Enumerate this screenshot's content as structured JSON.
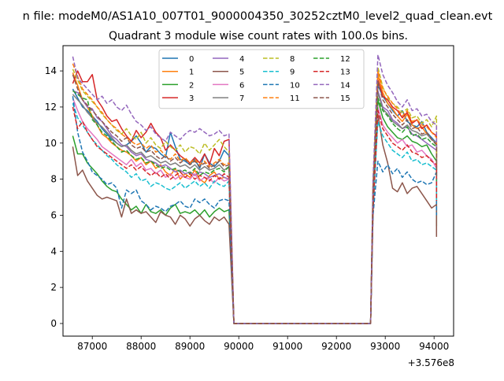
{
  "header": {
    "supertitle": "n file: modeM0/AS1A10_007T01_9000004350_30252cztM0_level2_quad_clean.evt",
    "title": "Quadrant 3 module wise count rates with 100.0s bins."
  },
  "chart_data": {
    "type": "line",
    "title": "Quadrant 3 module wise count rates with 100.0s bins.",
    "xlabel": "",
    "ylabel": "",
    "x_offset_label": "+3.576e8",
    "xlim": [
      86400,
      94400
    ],
    "ylim": [
      -0.7,
      15.4
    ],
    "xticks": [
      87000,
      88000,
      89000,
      90000,
      91000,
      92000,
      93000,
      94000
    ],
    "yticks": [
      0,
      2,
      4,
      6,
      8,
      10,
      12,
      14
    ],
    "grid": false,
    "legend_position": "top-center",
    "gap": {
      "start": 89850,
      "end": 92750,
      "value": 0
    },
    "x_start": 86600,
    "step": 100,
    "segment1_end": 89850,
    "segment2_start": 92750,
    "x_end": 94050,
    "series": [
      {
        "name": "0",
        "color": "#1f77b4",
        "dash": false,
        "seg1": [
          13.0,
          12.5,
          12.0,
          11.8,
          11.5,
          11.2,
          10.8,
          10.5,
          10.2,
          10.0,
          9.8,
          9.9,
          10.1,
          10.4,
          10.0,
          9.5,
          9.8,
          9.7,
          9.4,
          9.2,
          10.6,
          9.8,
          9.1,
          9.0,
          8.8,
          9.1,
          8.6,
          9.4,
          8.9,
          8.7,
          9.0,
          9.6,
          9.3
        ],
        "seg2": [
          7.0,
          13.2,
          12.6,
          12.2,
          11.8,
          11.5,
          11.8,
          11.2,
          11.0,
          10.9,
          11.2,
          10.6,
          10.3,
          10.0,
          9.0
        ]
      },
      {
        "name": "1",
        "color": "#ff7f0e",
        "dash": false,
        "seg1": [
          13.9,
          13.2,
          12.4,
          12.0,
          11.5,
          11.0,
          10.5,
          10.3,
          10.0,
          9.8,
          9.6,
          9.5,
          9.3,
          9.0,
          9.2,
          8.8,
          9.0,
          8.6,
          8.8,
          8.4,
          8.2,
          8.6,
          8.0,
          8.3,
          8.1,
          8.5,
          8.0,
          7.8,
          8.2,
          8.4,
          8.0,
          8.1,
          8.0
        ],
        "seg2": [
          6.8,
          13.8,
          12.8,
          12.2,
          11.9,
          11.5,
          11.2,
          11.6,
          11.0,
          10.8,
          10.9,
          10.5,
          10.2,
          10.0,
          8.6
        ]
      },
      {
        "name": "2",
        "color": "#2ca02c",
        "dash": false,
        "seg1": [
          10.4,
          9.4,
          9.4,
          8.9,
          8.6,
          8.3,
          7.9,
          7.6,
          7.4,
          7.3,
          6.9,
          6.6,
          6.3,
          6.5,
          6.1,
          6.6,
          6.2,
          6.1,
          6.3,
          6.0,
          6.4,
          6.6,
          6.1,
          6.2,
          6.1,
          6.3,
          6.0,
          6.3,
          5.9,
          6.2,
          6.4,
          6.2,
          6.3
        ],
        "seg2": [
          6.6,
          12.4,
          11.4,
          10.9,
          10.6,
          10.3,
          10.2,
          10.4,
          10.1,
          10.0,
          9.8,
          9.9,
          9.4,
          9.0,
          5.4
        ]
      },
      {
        "name": "3",
        "color": "#d62728",
        "dash": false,
        "seg1": [
          13.3,
          14.0,
          13.4,
          13.4,
          13.8,
          12.4,
          12.0,
          11.5,
          11.2,
          11.3,
          10.8,
          10.4,
          10.1,
          10.7,
          10.3,
          10.6,
          11.1,
          10.6,
          10.3,
          9.6,
          9.9,
          9.6,
          9.3,
          9.1,
          8.9,
          9.2,
          8.9,
          9.4,
          8.8,
          9.7,
          9.3,
          10.1,
          10.2
        ],
        "seg2": [
          7.5,
          13.5,
          12.6,
          12.4,
          12.0,
          11.8,
          11.4,
          11.7,
          11.1,
          11.3,
          10.8,
          11.0,
          10.6,
          10.4,
          8.2
        ]
      },
      {
        "name": "4",
        "color": "#9467bd",
        "dash": false,
        "seg1": [
          12.9,
          12.8,
          12.4,
          12.0,
          11.9,
          11.4,
          11.2,
          10.8,
          10.4,
          10.2,
          9.9,
          9.8,
          9.5,
          9.3,
          9.4,
          9.1,
          9.0,
          8.9,
          8.7,
          8.8,
          8.6,
          8.4,
          8.5,
          8.3,
          8.4,
          8.2,
          8.4,
          8.3,
          8.1,
          8.2,
          8.3,
          8.1,
          8.0
        ],
        "seg2": [
          7.2,
          12.9,
          12.0,
          11.8,
          11.3,
          11.1,
          10.8,
          10.9,
          10.5,
          10.4,
          10.2,
          10.0,
          9.8,
          9.6,
          8.2
        ]
      },
      {
        "name": "5",
        "color": "#8c564b",
        "dash": false,
        "seg1": [
          9.8,
          8.2,
          8.5,
          7.9,
          7.5,
          7.1,
          6.9,
          7.0,
          6.9,
          6.8,
          5.9,
          6.9,
          6.1,
          6.3,
          6.1,
          6.2,
          5.9,
          5.6,
          6.2,
          6.0,
          5.9,
          5.5,
          6.0,
          5.8,
          5.4,
          5.8,
          6.0,
          5.7,
          5.5,
          5.9,
          5.7,
          5.9,
          5.5
        ],
        "seg2": [
          6.2,
          11.6,
          9.9,
          8.9,
          7.5,
          7.3,
          7.8,
          7.2,
          7.5,
          7.6,
          7.2,
          6.8,
          6.4,
          6.6,
          4.8
        ]
      },
      {
        "name": "6",
        "color": "#e377c2",
        "dash": false,
        "seg1": [
          12.5,
          11.8,
          11.2,
          10.8,
          10.5,
          10.2,
          9.8,
          9.6,
          9.4,
          9.2,
          9.0,
          8.8,
          9.1,
          8.7,
          8.9,
          8.5,
          8.6,
          8.3,
          8.5,
          8.1,
          8.3,
          8.0,
          8.2,
          8.1,
          8.0,
          8.3,
          7.9,
          8.1,
          8.0,
          7.8,
          8.1,
          7.9,
          8.0
        ],
        "seg2": [
          6.9,
          12.0,
          11.0,
          10.6,
          10.3,
          10.0,
          10.2,
          9.8,
          9.9,
          9.5,
          9.6,
          9.3,
          9.1,
          8.6,
          7.5
        ]
      },
      {
        "name": "7",
        "color": "#7f7f7f",
        "dash": false,
        "seg1": [
          12.7,
          12.4,
          12.1,
          11.7,
          11.4,
          11.1,
          10.9,
          10.6,
          10.3,
          10.0,
          9.8,
          9.9,
          9.6,
          9.4,
          9.5,
          9.2,
          9.3,
          9.1,
          8.9,
          9.0,
          8.8,
          8.9,
          8.7,
          8.8,
          8.6,
          8.8,
          8.5,
          8.7,
          8.5,
          8.6,
          8.8,
          8.5,
          8.7
        ],
        "seg2": [
          7.4,
          12.8,
          11.9,
          11.6,
          11.2,
          11.0,
          10.8,
          11.0,
          10.7,
          10.6,
          10.4,
          10.5,
          10.2,
          10.0,
          8.4
        ]
      },
      {
        "name": "8",
        "color": "#bcbd22",
        "dash": true,
        "seg1": [
          14.1,
          13.5,
          12.9,
          12.6,
          12.3,
          12.0,
          11.6,
          11.3,
          11.0,
          10.7,
          10.5,
          10.8,
          10.4,
          10.2,
          10.6,
          10.0,
          10.3,
          9.9,
          9.7,
          10.1,
          9.8,
          9.6,
          9.9,
          9.5,
          9.8,
          9.7,
          9.4,
          10.0,
          9.6,
          9.9,
          10.2,
          9.8,
          9.5
        ],
        "seg2": [
          7.8,
          14.2,
          13.1,
          12.5,
          12.2,
          12.0,
          11.7,
          11.9,
          11.4,
          11.5,
          11.1,
          11.3,
          10.9,
          11.5,
          9.4
        ]
      },
      {
        "name": "9",
        "color": "#17becf",
        "dash": true,
        "seg1": [
          12.2,
          11.4,
          11.0,
          10.6,
          10.2,
          9.9,
          9.6,
          9.3,
          9.1,
          8.8,
          8.6,
          8.4,
          8.1,
          8.3,
          7.9,
          8.0,
          7.6,
          7.8,
          7.7,
          7.5,
          7.4,
          7.6,
          7.8,
          7.5,
          7.7,
          7.9,
          7.6,
          7.8,
          7.5,
          7.9,
          7.7,
          7.6,
          7.9
        ],
        "seg2": [
          6.5,
          11.2,
          10.4,
          10.0,
          9.6,
          9.4,
          9.2,
          9.5,
          9.0,
          9.1,
          8.8,
          8.9,
          8.7,
          8.5,
          6.8
        ]
      },
      {
        "name": "10",
        "color": "#1f77b4",
        "dash": true,
        "seg1": [
          12.6,
          10.6,
          9.5,
          9.0,
          8.4,
          8.2,
          8.0,
          7.7,
          7.8,
          7.5,
          6.4,
          7.4,
          7.2,
          7.4,
          6.8,
          6.6,
          6.3,
          6.5,
          6.4,
          6.2,
          6.5,
          6.6,
          6.8,
          6.5,
          6.4,
          6.9,
          6.7,
          6.9,
          6.6,
          6.4,
          6.8,
          6.9,
          6.8
        ],
        "seg2": [
          6.0,
          9.0,
          8.4,
          8.8,
          8.3,
          8.6,
          8.1,
          8.4,
          8.0,
          7.8,
          7.9,
          7.7,
          7.8,
          8.4,
          6.0
        ]
      },
      {
        "name": "11",
        "color": "#ff7f0e",
        "dash": true,
        "seg1": [
          14.4,
          13.7,
          13.0,
          12.7,
          12.4,
          12.0,
          11.7,
          11.3,
          11.0,
          10.8,
          10.5,
          10.3,
          10.1,
          9.9,
          10.0,
          9.7,
          9.9,
          9.5,
          9.6,
          9.3,
          9.1,
          9.4,
          9.0,
          9.2,
          8.9,
          9.1,
          8.8,
          9.0,
          8.7,
          8.9,
          9.1,
          8.8,
          8.9
        ],
        "seg2": [
          7.6,
          14.0,
          13.0,
          12.6,
          12.2,
          11.9,
          11.5,
          11.8,
          11.2,
          11.3,
          11.0,
          10.9,
          10.6,
          10.3,
          8.8
        ]
      },
      {
        "name": "12",
        "color": "#2ca02c",
        "dash": true,
        "seg1": [
          12.9,
          12.7,
          12.5,
          12.4,
          11.3,
          11.0,
          10.6,
          10.4,
          10.1,
          9.8,
          9.5,
          9.6,
          9.3,
          9.1,
          9.2,
          8.9,
          9.0,
          8.8,
          8.6,
          8.7,
          8.5,
          8.6,
          8.4,
          8.5,
          8.3,
          8.6,
          8.2,
          8.4,
          8.3,
          8.5,
          8.6,
          8.4,
          8.7
        ],
        "seg2": [
          7.3,
          12.5,
          11.8,
          11.5,
          11.1,
          10.8,
          10.6,
          10.9,
          10.4,
          10.5,
          10.2,
          10.3,
          10.0,
          9.8,
          7.9
        ]
      },
      {
        "name": "13",
        "color": "#d62728",
        "dash": true,
        "seg1": [
          12.0,
          10.8,
          11.2,
          10.6,
          10.2,
          9.8,
          9.6,
          9.4,
          9.2,
          9.0,
          8.8,
          8.6,
          8.8,
          8.5,
          8.7,
          8.4,
          8.2,
          8.4,
          8.1,
          8.3,
          8.0,
          8.2,
          8.4,
          8.1,
          8.3,
          8.0,
          8.2,
          8.1,
          7.9,
          8.2,
          8.0,
          8.3,
          8.1
        ],
        "seg2": [
          6.4,
          11.8,
          10.8,
          10.4,
          10.0,
          9.8,
          9.6,
          9.9,
          9.5,
          9.4,
          9.2,
          9.3,
          9.0,
          8.8,
          6.8
        ]
      },
      {
        "name": "14",
        "color": "#9467bd",
        "dash": true,
        "seg1": [
          14.8,
          13.6,
          13.3,
          13.0,
          12.7,
          12.4,
          12.6,
          12.2,
          12.4,
          12.0,
          11.8,
          12.1,
          11.6,
          11.2,
          11.0,
          10.7,
          10.9,
          10.5,
          10.3,
          10.1,
          10.6,
          10.4,
          10.2,
          10.5,
          10.7,
          10.6,
          10.8,
          10.6,
          10.4,
          10.5,
          10.7,
          10.4,
          10.5
        ],
        "seg2": [
          8.0,
          14.9,
          13.8,
          13.2,
          12.8,
          12.3,
          12.0,
          12.4,
          11.8,
          11.9,
          11.5,
          11.6,
          11.2,
          11.0,
          9.6
        ]
      },
      {
        "name": "15",
        "color": "#8c564b",
        "dash": true,
        "seg1": [
          13.8,
          13.0,
          12.4,
          12.1,
          11.8,
          11.5,
          11.2,
          10.9,
          10.6,
          10.4,
          10.1,
          10.3,
          9.9,
          9.7,
          9.8,
          9.5,
          9.6,
          9.3,
          9.1,
          9.3,
          9.0,
          9.2,
          8.9,
          9.1,
          8.8,
          9.0,
          8.7,
          8.9,
          8.6,
          8.8,
          9.0,
          8.7,
          8.8
        ],
        "seg2": [
          7.2,
          13.4,
          12.4,
          12.0,
          11.6,
          11.3,
          11.0,
          11.3,
          10.8,
          10.9,
          10.5,
          10.6,
          10.2,
          9.9,
          8.0
        ]
      }
    ]
  }
}
